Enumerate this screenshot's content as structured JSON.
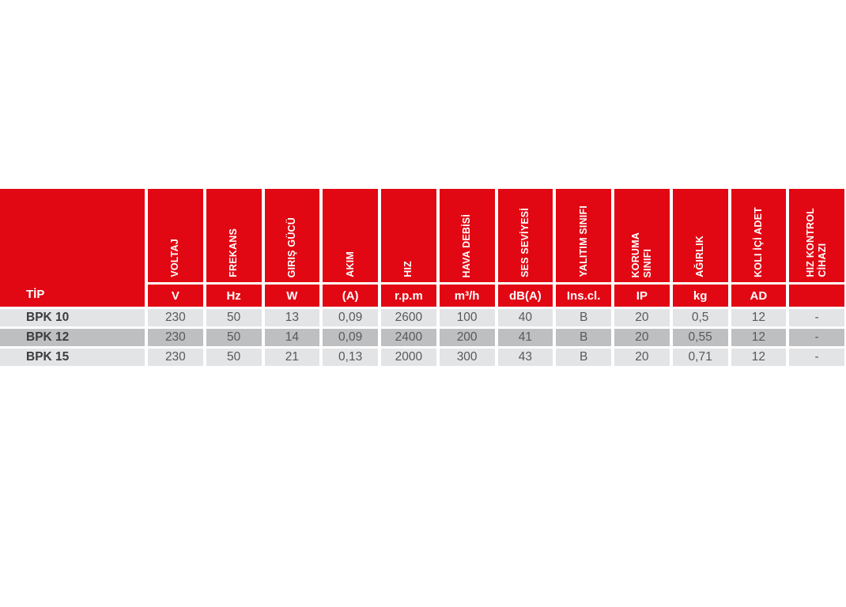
{
  "colors": {
    "red": "#e10713",
    "row_light": "#e3e4e5",
    "row_dark": "#bdbfc1",
    "text_data": "#58595b",
    "text_dark": "#3c3d3f"
  },
  "table": {
    "tip_header": "TİP",
    "columns": [
      {
        "label": "VOLTAJ",
        "unit": "V"
      },
      {
        "label": "FREKANS",
        "unit": "Hz"
      },
      {
        "label": "GIRIŞ GÜCÜ",
        "unit": "W"
      },
      {
        "label": "AKIM",
        "unit": "(A)"
      },
      {
        "label": "HIZ",
        "unit": "r.p.m"
      },
      {
        "label": "HAVA DEBİSİ",
        "unit": "m³/h"
      },
      {
        "label": "SES SEVİYESİ",
        "unit": "dB(A)"
      },
      {
        "label": "YALITIM SINIFI",
        "unit": "Ins.cl."
      },
      {
        "label": "KORUMA\nSINIFI",
        "unit": "IP"
      },
      {
        "label": "AĞIRLIK",
        "unit": "kg"
      },
      {
        "label": "KOLI İÇİ ADET",
        "unit": "AD"
      },
      {
        "label": "HIZ KONTROL\nCİHAZI",
        "unit": ""
      }
    ],
    "rows": [
      {
        "tip": "BPK 10",
        "values": [
          "230",
          "50",
          "13",
          "0,09",
          "2600",
          "100",
          "40",
          "B",
          "20",
          "0,5",
          "12",
          "-"
        ]
      },
      {
        "tip": "BPK 12",
        "values": [
          "230",
          "50",
          "14",
          "0,09",
          "2400",
          "200",
          "41",
          "B",
          "20",
          "0,55",
          "12",
          "-"
        ]
      },
      {
        "tip": "BPK 15",
        "values": [
          "230",
          "50",
          "21",
          "0,13",
          "2000",
          "300",
          "43",
          "B",
          "20",
          "0,71",
          "12",
          "-"
        ]
      }
    ]
  }
}
